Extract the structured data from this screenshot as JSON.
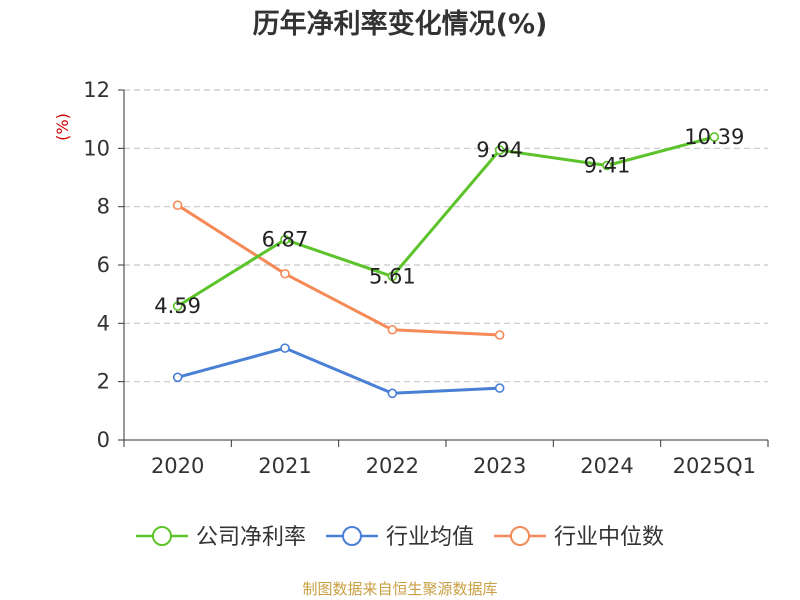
{
  "chart_data": {
    "type": "line",
    "title": "历年净利率变化情况(%)",
    "ylabel": "(%)",
    "ylim": [
      0,
      12
    ],
    "yticks": [
      0,
      2,
      4,
      6,
      8,
      10,
      12
    ],
    "categories": [
      "2020",
      "2021",
      "2022",
      "2023",
      "2024",
      "2025Q1"
    ],
    "grid": true,
    "legend_position": "bottom",
    "series": [
      {
        "name": "公司净利率",
        "color": "#5cc42a",
        "values": [
          4.59,
          6.87,
          5.61,
          9.94,
          9.41,
          10.39
        ],
        "labels": [
          "4.59",
          "6.87",
          "5.61",
          "9.94",
          "9.41",
          "10.39"
        ]
      },
      {
        "name": "行业均值",
        "color": "#4a7fd6",
        "values": [
          2.15,
          3.15,
          1.6,
          1.78,
          null,
          null
        ]
      },
      {
        "name": "行业中位数",
        "color": "#f58a56",
        "values": [
          8.05,
          5.7,
          3.78,
          3.6,
          null,
          null
        ]
      }
    ]
  },
  "source_text": "制图数据来自恒生聚源数据库"
}
